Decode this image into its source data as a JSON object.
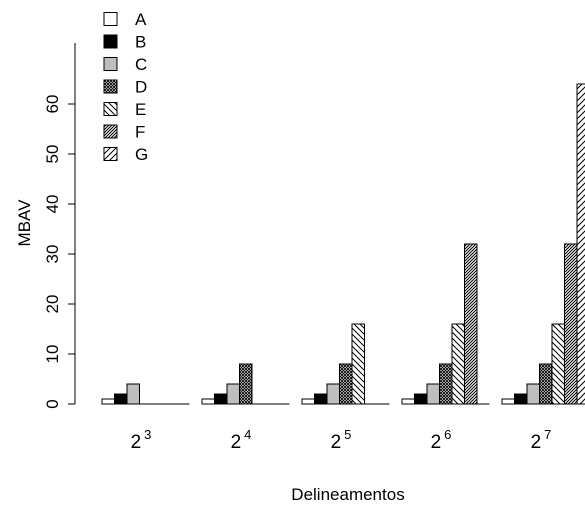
{
  "chart_data": {
    "type": "bar",
    "categories": [
      {
        "base": "2",
        "exp": "3"
      },
      {
        "base": "2",
        "exp": "4"
      },
      {
        "base": "2",
        "exp": "5"
      },
      {
        "base": "2",
        "exp": "6"
      },
      {
        "base": "2",
        "exp": "7"
      }
    ],
    "series": [
      {
        "name": "A",
        "fill": "white",
        "values": [
          1,
          1,
          1,
          1,
          1
        ]
      },
      {
        "name": "B",
        "fill": "black",
        "values": [
          2,
          2,
          2,
          2,
          2
        ]
      },
      {
        "name": "C",
        "fill": "gray",
        "values": [
          4,
          4,
          4,
          4,
          4
        ]
      },
      {
        "name": "D",
        "fill": "crosshatch",
        "values": [
          null,
          8,
          8,
          8,
          8
        ]
      },
      {
        "name": "E",
        "fill": "diag-back",
        "values": [
          null,
          null,
          16,
          16,
          16
        ]
      },
      {
        "name": "F",
        "fill": "diag-dense",
        "values": [
          null,
          null,
          null,
          32,
          32
        ]
      },
      {
        "name": "G",
        "fill": "diag-fwd",
        "values": [
          null,
          null,
          null,
          null,
          64
        ]
      }
    ],
    "xlabel": "Delineamentos",
    "ylabel": "MBAV",
    "ylim": [
      0,
      64
    ],
    "yticks": [
      0,
      10,
      20,
      30,
      40,
      50,
      60
    ],
    "legend_position": "top-left",
    "grid": false,
    "colors": {
      "gray": "#bebebe",
      "black": "#000000",
      "white": "#ffffff"
    }
  }
}
